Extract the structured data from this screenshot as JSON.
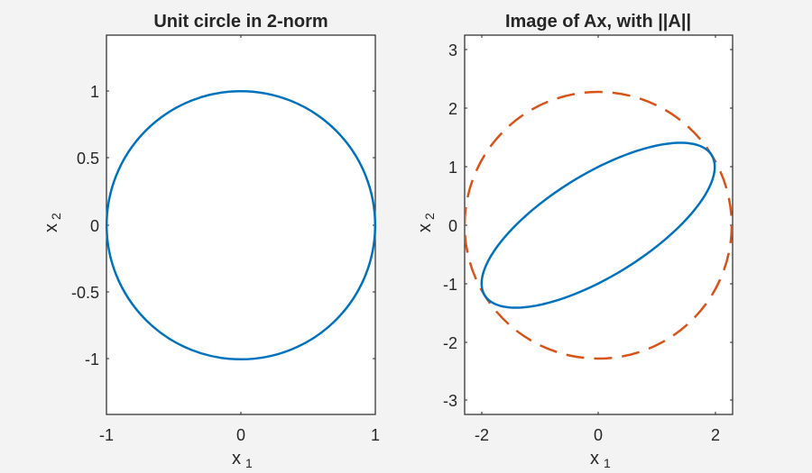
{
  "chart_data": [
    {
      "type": "line",
      "title": "Unit circle in 2-norm",
      "xlabel": "x_1",
      "ylabel": "x_2",
      "xlim": [
        -1,
        1
      ],
      "ylim": [
        -1.42,
        1.42
      ],
      "xticks": [
        "-1",
        "0",
        "1"
      ],
      "yticks": [
        "-1",
        "-0.5",
        "0",
        "0.5",
        "1"
      ],
      "grid": false,
      "series": [
        {
          "name": "unit circle",
          "shape": "circle",
          "cx": 0,
          "cy": 0,
          "r": 1,
          "color": "#0072BD",
          "style": "solid"
        }
      ]
    },
    {
      "type": "line",
      "title": "Image of Ax, with ||A||",
      "xlabel": "x_1",
      "ylabel": "x_2",
      "xlim": [
        -2.3,
        2.3
      ],
      "ylim": [
        -3.26,
        3.26
      ],
      "xticks": [
        "-2",
        "0",
        "2"
      ],
      "yticks": [
        "-3",
        "-2",
        "-1",
        "0",
        "1",
        "2",
        "3"
      ],
      "grid": false,
      "series": [
        {
          "name": "Ax (ellipse)",
          "shape": "ellipse",
          "matrix": [
            [
              2,
              0
            ],
            [
              1,
              1
            ]
          ],
          "color": "#0072BD",
          "style": "solid",
          "key_points": [
            [
              2.0,
              1.0
            ],
            [
              1.414,
              1.414
            ],
            [
              -2.0,
              -1.0
            ],
            [
              -1.414,
              -1.414
            ]
          ]
        },
        {
          "name": "||A|| circle",
          "shape": "circle",
          "cx": 0,
          "cy": 0,
          "r": 2.288,
          "color": "#D95319",
          "style": "dashed"
        }
      ]
    }
  ],
  "left": {
    "title": "Unit circle in 2-norm",
    "xticks": [
      "-1",
      "0",
      "1"
    ],
    "yticks": [
      "1",
      "0.5",
      "0",
      "-0.5",
      "-1"
    ],
    "xlabel": "x",
    "xlabel_sub": "1",
    "ylabel": "x",
    "ylabel_sub": "2"
  },
  "right": {
    "title": "Image of Ax, with ||A||",
    "xticks": [
      "-2",
      "0",
      "2"
    ],
    "yticks": [
      "3",
      "2",
      "1",
      "0",
      "-1",
      "-2",
      "-3"
    ],
    "xlabel": "x",
    "xlabel_sub": "1",
    "ylabel": "x",
    "ylabel_sub": "2"
  },
  "colors": {
    "blue": "#0072BD",
    "orange": "#D95319",
    "axis": "#262626",
    "figure_bg": "#f3f3f3",
    "axes_bg": "#ffffff"
  }
}
